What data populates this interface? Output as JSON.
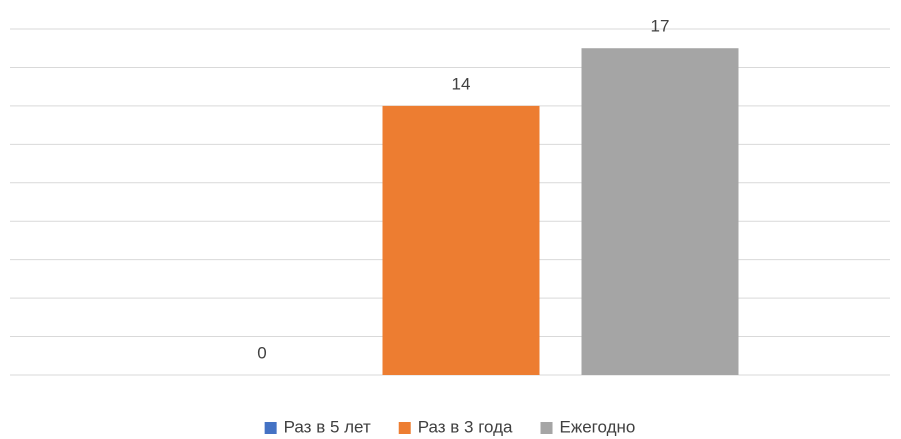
{
  "chart_data": {
    "type": "bar",
    "categories": [
      null
    ],
    "series": [
      {
        "name": "Раз в 5 лет",
        "color": "#4472c4",
        "values": [
          0
        ]
      },
      {
        "name": "Раз в 3 года",
        "color": "#ed7d31",
        "values": [
          14
        ]
      },
      {
        "name": "Ежегодно",
        "color": "#a5a5a5",
        "values": [
          17
        ]
      }
    ],
    "ylim": [
      0,
      18
    ],
    "yticks": [
      0,
      2,
      4,
      6,
      8,
      10,
      12,
      14,
      16,
      18
    ],
    "grid": true,
    "ytick_labels": false,
    "data_labels": true,
    "legend": "bottom"
  }
}
